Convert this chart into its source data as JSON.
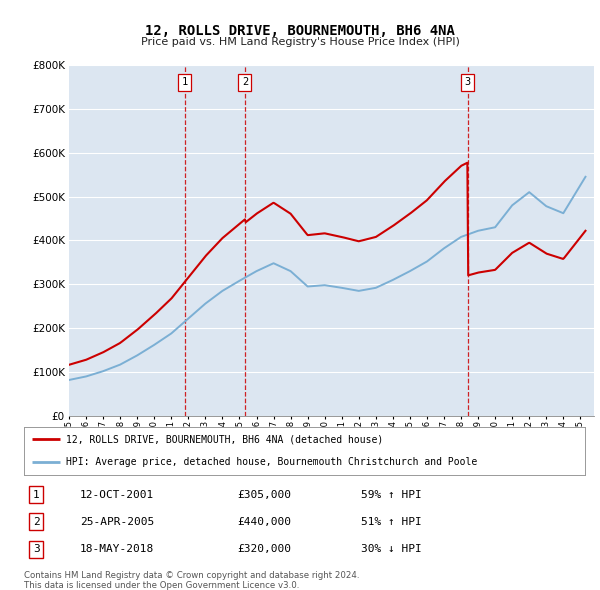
{
  "title": "12, ROLLS DRIVE, BOURNEMOUTH, BH6 4NA",
  "subtitle": "Price paid vs. HM Land Registry's House Price Index (HPI)",
  "background_color": "#ffffff",
  "chart_bg_color": "#dce6f1",
  "grid_color": "#ffffff",
  "transactions": [
    {
      "num": 1,
      "date": "12-OCT-2001",
      "price": 305000,
      "year": 2001.78,
      "pct": "59%",
      "dir": "↑"
    },
    {
      "num": 2,
      "date": "25-APR-2005",
      "price": 440000,
      "year": 2005.32,
      "pct": "51%",
      "dir": "↑"
    },
    {
      "num": 3,
      "date": "18-MAY-2018",
      "price": 320000,
      "year": 2018.38,
      "pct": "30%",
      "dir": "↓"
    }
  ],
  "legend_entries": [
    "12, ROLLS DRIVE, BOURNEMOUTH, BH6 4NA (detached house)",
    "HPI: Average price, detached house, Bournemouth Christchurch and Poole"
  ],
  "footer": [
    "Contains HM Land Registry data © Crown copyright and database right 2024.",
    "This data is licensed under the Open Government Licence v3.0."
  ],
  "hpi_color": "#7bafd4",
  "price_color": "#cc0000",
  "dashed_color": "#cc0000",
  "ylim": [
    0,
    800000
  ],
  "xlim_start": 1995.0,
  "xlim_end": 2025.8
}
